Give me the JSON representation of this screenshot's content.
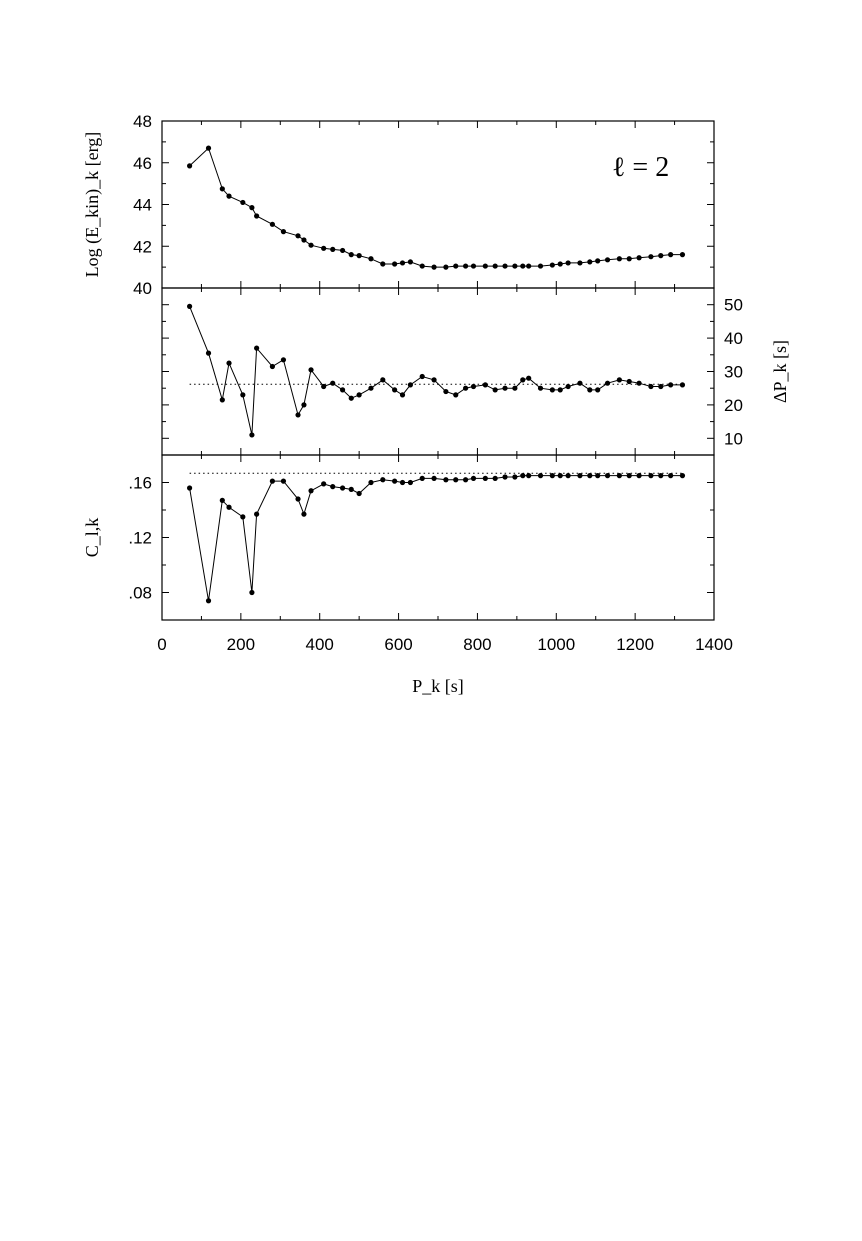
{
  "chart_data": {
    "type": "line",
    "x": [
      70,
      118,
      153,
      170,
      205,
      228,
      240,
      280,
      308,
      345,
      360,
      378,
      410,
      433,
      458,
      480,
      500,
      530,
      560,
      590,
      610,
      630,
      660,
      690,
      720,
      745,
      770,
      790,
      820,
      845,
      870,
      895,
      915,
      930,
      960,
      990,
      1010,
      1030,
      1060,
      1085,
      1105,
      1130,
      1160,
      1185,
      1210,
      1240,
      1265,
      1290,
      1320
    ],
    "xlabel": "P_k [s]",
    "xlim": [
      0,
      1400
    ],
    "xticks": [
      "0",
      "200",
      "400",
      "600",
      "800",
      "1000",
      "1200",
      "1400"
    ],
    "annotation": "ℓ = 2",
    "panels": [
      {
        "name": "top",
        "ylabel": "Log (E_kin)_k [erg]",
        "ylim": [
          40,
          48
        ],
        "yticks": [
          "40",
          "42",
          "44",
          "46",
          "48"
        ],
        "yaxis_side": "left",
        "values": [
          45.85,
          46.7,
          44.75,
          44.4,
          44.1,
          43.85,
          43.45,
          43.05,
          42.7,
          42.5,
          42.3,
          42.05,
          41.9,
          41.85,
          41.8,
          41.6,
          41.55,
          41.4,
          41.15,
          41.15,
          41.2,
          41.25,
          41.05,
          41.0,
          41.0,
          41.05,
          41.05,
          41.05,
          41.05,
          41.05,
          41.05,
          41.05,
          41.05,
          41.05,
          41.05,
          41.1,
          41.15,
          41.2,
          41.2,
          41.25,
          41.3,
          41.35,
          41.4,
          41.4,
          41.45,
          41.5,
          41.55,
          41.6,
          41.6
        ]
      },
      {
        "name": "middle",
        "ylabel": "ΔP_k [s]",
        "ylim": [
          5,
          55
        ],
        "yticks": [
          "10",
          "20",
          "30",
          "40",
          "50"
        ],
        "yaxis_side": "right",
        "reference_line": 26.2,
        "values": [
          49.5,
          35.5,
          21.5,
          32.5,
          23.0,
          11.0,
          37.0,
          31.5,
          33.5,
          17.0,
          20.0,
          30.5,
          25.5,
          26.5,
          24.5,
          22.0,
          23.0,
          25.0,
          27.5,
          24.5,
          23.0,
          26.0,
          28.5,
          27.5,
          24.0,
          23.0,
          25.0,
          25.5,
          26.0,
          24.5,
          25.0,
          25.0,
          27.5,
          28.0,
          25.0,
          24.5,
          24.5,
          25.5,
          26.5,
          24.5,
          24.5,
          26.5,
          27.5,
          27.0,
          26.5,
          25.5,
          25.5,
          26.0,
          26.0
        ]
      },
      {
        "name": "bottom",
        "ylabel": "C_l,k",
        "ylim": [
          0.06,
          0.18
        ],
        "yticks": [
          ".08",
          ".12",
          ".16"
        ],
        "yaxis_side": "left",
        "reference_line": 0.1667,
        "values": [
          0.156,
          0.074,
          0.147,
          0.142,
          0.135,
          0.08,
          0.137,
          0.161,
          0.161,
          0.148,
          0.137,
          0.154,
          0.159,
          0.157,
          0.156,
          0.155,
          0.152,
          0.16,
          0.162,
          0.161,
          0.16,
          0.16,
          0.163,
          0.163,
          0.162,
          0.162,
          0.162,
          0.163,
          0.163,
          0.163,
          0.164,
          0.164,
          0.165,
          0.165,
          0.165,
          0.165,
          0.165,
          0.165,
          0.165,
          0.165,
          0.165,
          0.165,
          0.165,
          0.165,
          0.165,
          0.165,
          0.165,
          0.165,
          0.165
        ]
      }
    ]
  }
}
